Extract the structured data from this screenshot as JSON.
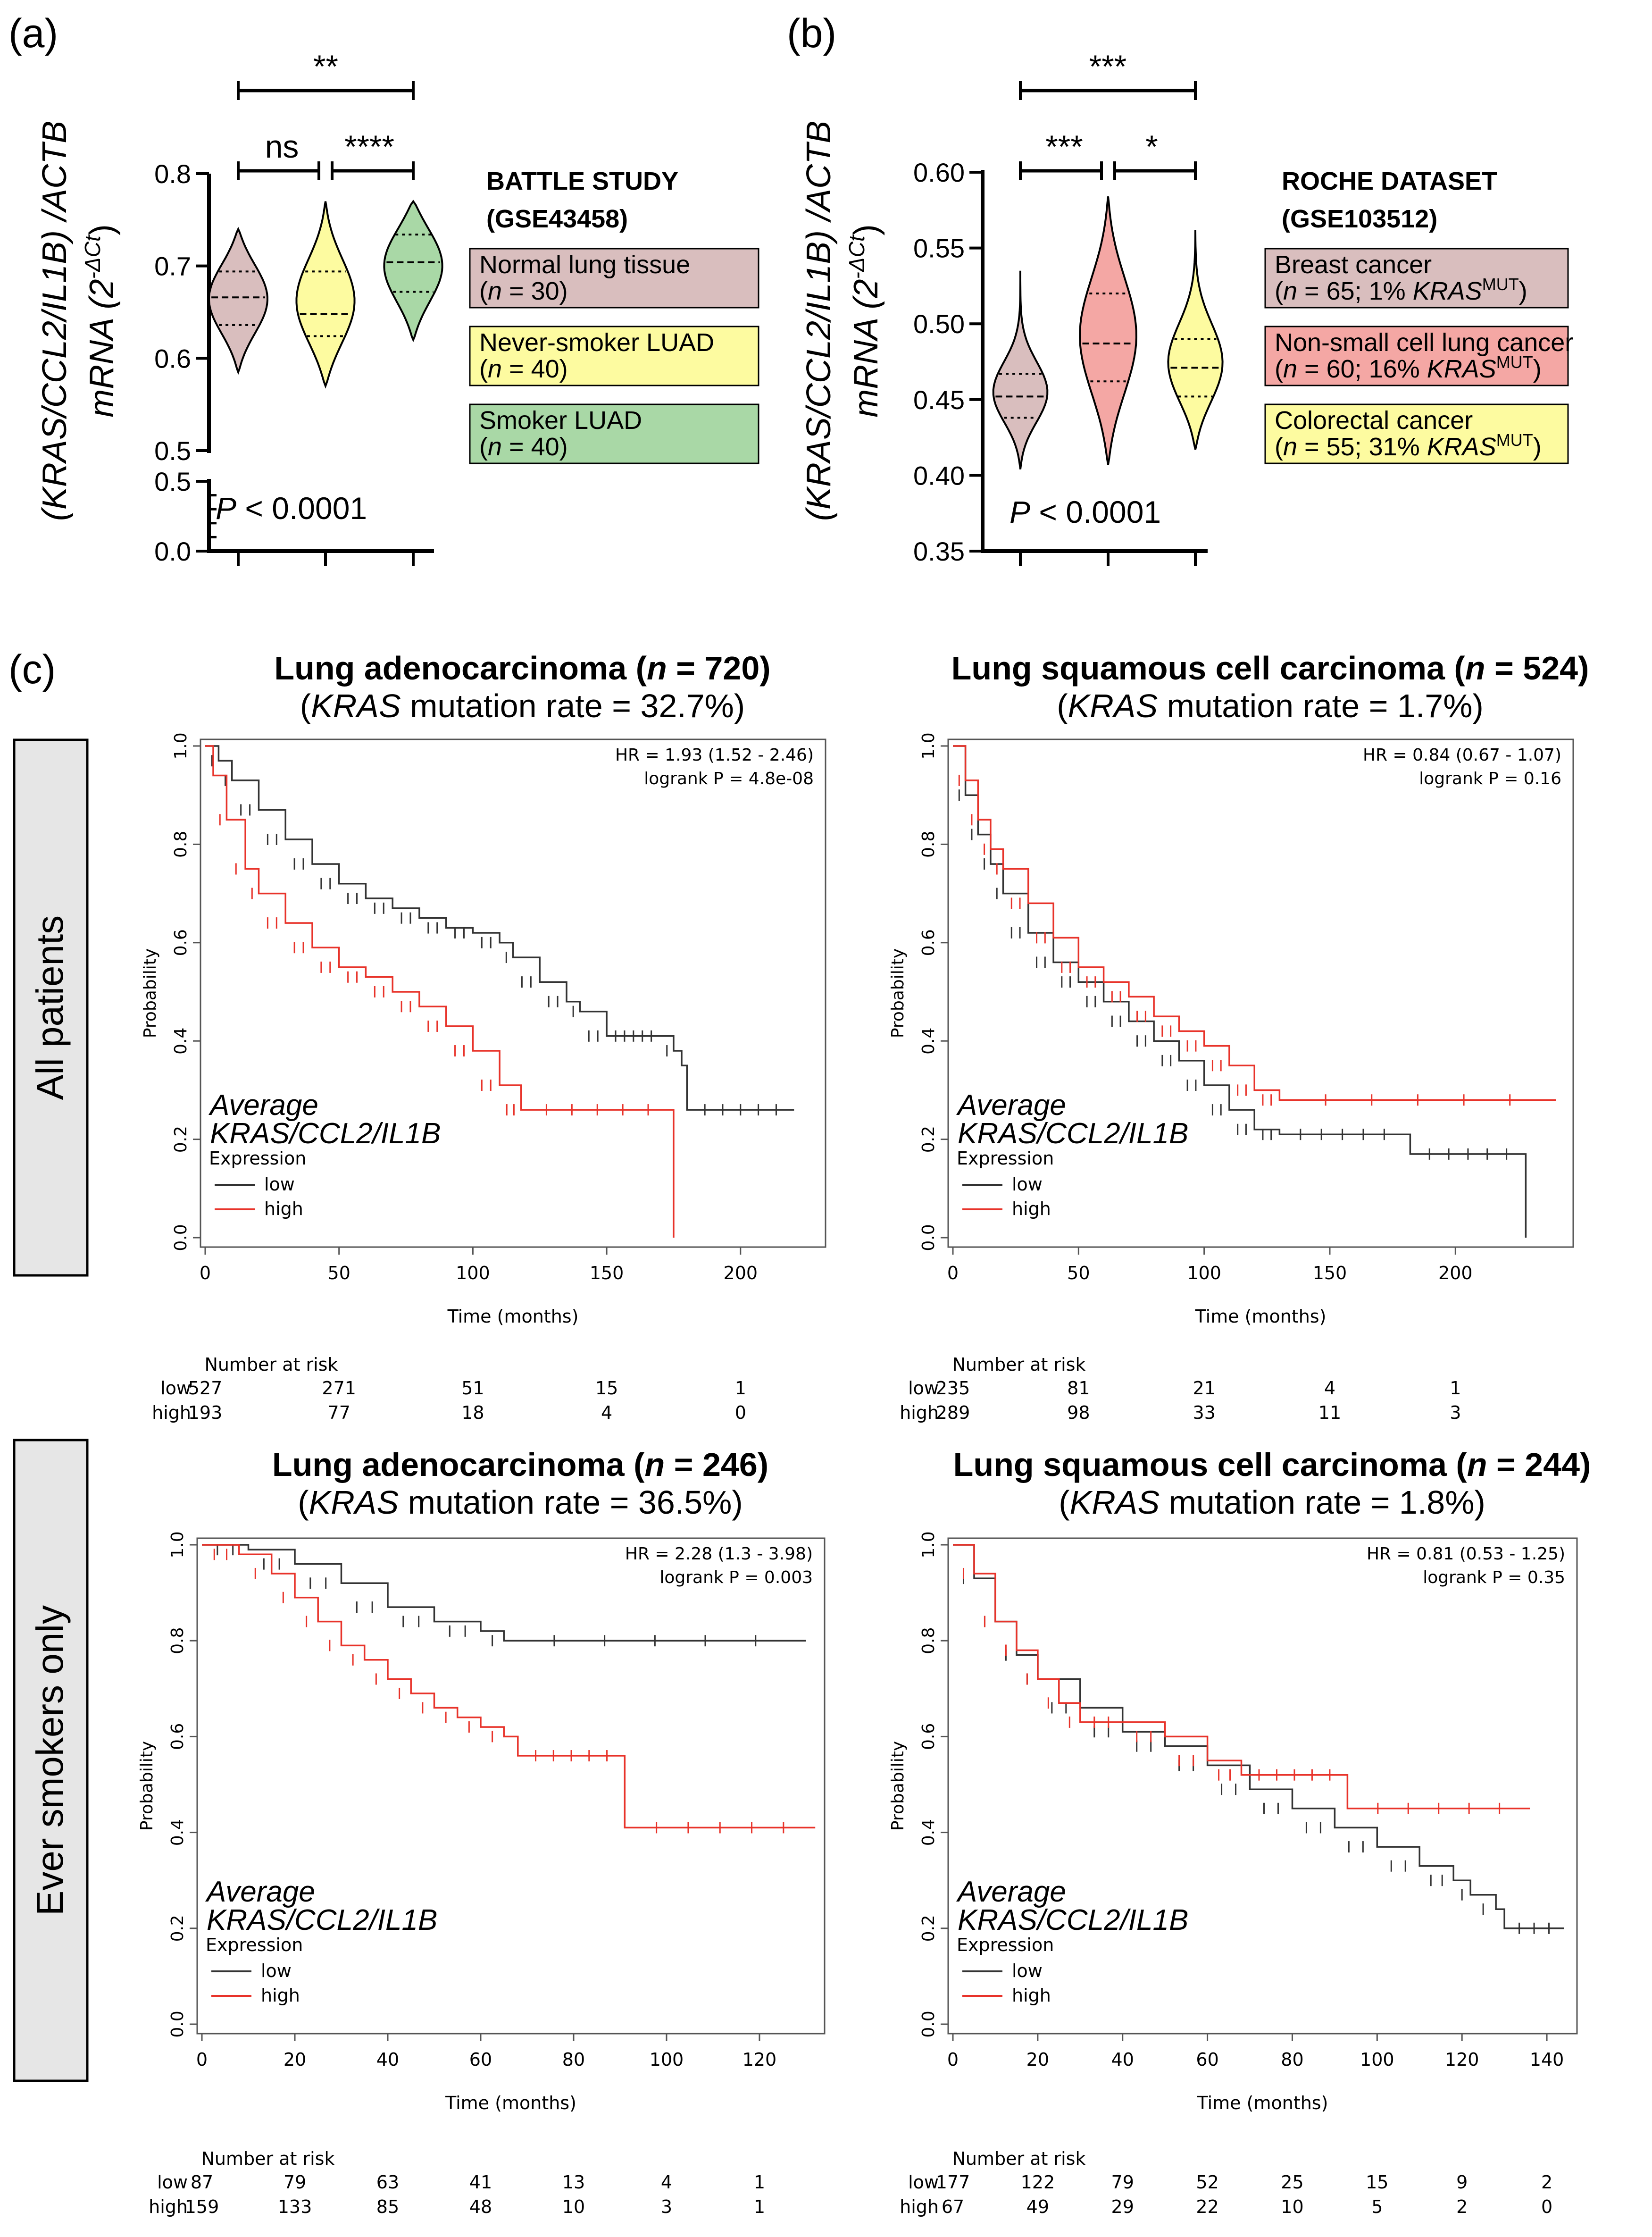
{
  "panel_labels": [
    "(a)",
    "(b)",
    "(c)"
  ],
  "row_labels": [
    "All patients",
    "Ever smokers only"
  ],
  "chart_data": [
    {
      "id": "a",
      "type": "violin",
      "ylabel_line1": "(KRAS/CCL2/IL1B) /ACTB",
      "ylabel_line2": "mRNA (2",
      "ylabel_sup": "-ΔCt",
      "ylabel_close": ")",
      "ylim_upper": [
        0.5,
        0.8
      ],
      "ylim_lower": [
        0.0,
        0.5
      ],
      "yticks_upper": [
        "0.5",
        "0.6",
        "0.7",
        "0.8"
      ],
      "yticks_lower": [
        "0.0",
        "0.5"
      ],
      "pvalue_label": "P",
      "pvalue_text": "< 0.0001",
      "significance": [
        {
          "groups": [
            1,
            3
          ],
          "label": "**"
        },
        {
          "groups": [
            1,
            2
          ],
          "label": "ns"
        },
        {
          "groups": [
            2,
            3
          ],
          "label": "****"
        }
      ],
      "legend_title": "BATTLE STUDY",
      "legend_subtitle": "(GSE43458)",
      "groups": [
        {
          "name": "Normal lung tissue",
          "n_text": "(n = 30)",
          "color": "#D9BEBE",
          "min": 0.585,
          "max": 0.74,
          "q1": 0.636,
          "median": 0.666,
          "q3": 0.694
        },
        {
          "name": "Never-smoker LUAD",
          "n_text": "(n = 40)",
          "color": "#FDFBA0",
          "min": 0.57,
          "max": 0.77,
          "q1": 0.624,
          "median": 0.648,
          "q3": 0.694
        },
        {
          "name": "Smoker LUAD",
          "n_text": "(n = 40)",
          "color": "#A9D8A6",
          "min": 0.62,
          "max": 0.77,
          "q1": 0.672,
          "median": 0.704,
          "q3": 0.734
        }
      ]
    },
    {
      "id": "b",
      "type": "violin",
      "ylabel_line1": "(KRAS/CCL2/IL1B) /ACTB",
      "ylabel_line2": "mRNA (2",
      "ylabel_sup": "-ΔCt",
      "ylabel_close": ")",
      "ylim": [
        0.35,
        0.6
      ],
      "yticks": [
        "0.35",
        "0.40",
        "0.45",
        "0.50",
        "0.55",
        "0.60"
      ],
      "pvalue_label": "P",
      "pvalue_text": "< 0.0001",
      "significance": [
        {
          "groups": [
            1,
            3
          ],
          "label": "***"
        },
        {
          "groups": [
            1,
            2
          ],
          "label": "***"
        },
        {
          "groups": [
            2,
            3
          ],
          "label": "*"
        }
      ],
      "legend_title": "ROCHE DATASET",
      "legend_subtitle": "(GSE103512)",
      "groups": [
        {
          "name": "Breast cancer",
          "n_text": "(n = 65; 1% KRAS",
          "sup": "MUT",
          "close": ")",
          "color": "#D9BEBE",
          "min": 0.404,
          "max": 0.535,
          "q1": 0.438,
          "median": 0.452,
          "q3": 0.467
        },
        {
          "name": "Non-small cell lung cancer",
          "n_text": "(n = 60; 16% KRAS",
          "sup": "MUT",
          "close": ")",
          "color": "#F4A7A4",
          "min": 0.407,
          "max": 0.584,
          "q1": 0.462,
          "median": 0.487,
          "q3": 0.52
        },
        {
          "name": "Colorectal cancer",
          "n_text": "(n = 55; 31% KRAS",
          "sup": "MUT",
          "close": ")",
          "color": "#FDFBA0",
          "min": 0.417,
          "max": 0.562,
          "q1": 0.452,
          "median": 0.471,
          "q3": 0.49
        }
      ]
    },
    {
      "id": "c1",
      "type": "kaplan-meier",
      "title_main": "Lung adenocarcinoma (n = 720)",
      "title_sub": "(KRAS mutation rate = 32.7%)",
      "hr_text": "HR = 1.93 (1.52 - 2.46)",
      "logrank_text": "logrank P = 4.8e-08",
      "xlabel": "Time (months)",
      "ylabel": "Probability",
      "xlim": [
        0,
        230
      ],
      "xticks": [
        0,
        50,
        100,
        150,
        200
      ],
      "ylim": [
        0,
        1
      ],
      "yticks": [
        "0.0",
        "0.2",
        "0.4",
        "0.6",
        "0.8",
        "1.0"
      ],
      "annotation_line1": "Average",
      "annotation_line2": "KRAS/CCL2/IL1B",
      "legend_title": "Expression",
      "risk_title": "Number at risk",
      "series": [
        {
          "name": "low",
          "color": "#333333",
          "risk": [
            "527",
            "271",
            "51",
            "15",
            "1"
          ],
          "points": [
            [
              0,
              1.0
            ],
            [
              5,
              0.97
            ],
            [
              10,
              0.93
            ],
            [
              20,
              0.87
            ],
            [
              30,
              0.81
            ],
            [
              40,
              0.76
            ],
            [
              50,
              0.72
            ],
            [
              60,
              0.69
            ],
            [
              70,
              0.67
            ],
            [
              80,
              0.65
            ],
            [
              90,
              0.63
            ],
            [
              100,
              0.62
            ],
            [
              110,
              0.6
            ],
            [
              115,
              0.57
            ],
            [
              125,
              0.52
            ],
            [
              135,
              0.48
            ],
            [
              140,
              0.46
            ],
            [
              150,
              0.41
            ],
            [
              170,
              0.41
            ],
            [
              175,
              0.38
            ],
            [
              178,
              0.35
            ],
            [
              180,
              0.26
            ],
            [
              220,
              0.26
            ]
          ]
        },
        {
          "name": "high",
          "color": "#E8332A",
          "risk": [
            "193",
            "77",
            "18",
            "4",
            "0"
          ],
          "points": [
            [
              0,
              1.0
            ],
            [
              3,
              0.94
            ],
            [
              8,
              0.85
            ],
            [
              15,
              0.75
            ],
            [
              20,
              0.7
            ],
            [
              30,
              0.64
            ],
            [
              40,
              0.59
            ],
            [
              50,
              0.55
            ],
            [
              60,
              0.53
            ],
            [
              70,
              0.5
            ],
            [
              80,
              0.47
            ],
            [
              90,
              0.43
            ],
            [
              100,
              0.38
            ],
            [
              110,
              0.31
            ],
            [
              118,
              0.26
            ],
            [
              175,
              0.26
            ],
            [
              175,
              0.0
            ]
          ]
        }
      ]
    },
    {
      "id": "c2",
      "type": "kaplan-meier",
      "title_main": "Lung squamous cell carcinoma (n = 524)",
      "title_sub": "(KRAS mutation rate = 1.7%)",
      "hr_text": "HR = 0.84 (0.67 - 1.07)",
      "logrank_text": "logrank P = 0.16",
      "xlabel": "Time (months)",
      "ylabel": "Probability",
      "xlim": [
        0,
        245
      ],
      "xticks": [
        0,
        50,
        100,
        150,
        200
      ],
      "ylim": [
        0,
        1
      ],
      "yticks": [
        "0.0",
        "0.2",
        "0.4",
        "0.6",
        "0.8",
        "1.0"
      ],
      "annotation_line1": "Average",
      "annotation_line2": "KRAS/CCL2/IL1B",
      "legend_title": "Expression",
      "risk_title": "Number at risk",
      "series": [
        {
          "name": "low",
          "color": "#333333",
          "risk": [
            "235",
            "81",
            "21",
            "4",
            "1"
          ],
          "points": [
            [
              0,
              1.0
            ],
            [
              5,
              0.9
            ],
            [
              10,
              0.82
            ],
            [
              15,
              0.76
            ],
            [
              20,
              0.7
            ],
            [
              30,
              0.62
            ],
            [
              40,
              0.56
            ],
            [
              50,
              0.52
            ],
            [
              60,
              0.48
            ],
            [
              70,
              0.44
            ],
            [
              80,
              0.4
            ],
            [
              90,
              0.36
            ],
            [
              100,
              0.31
            ],
            [
              110,
              0.26
            ],
            [
              120,
              0.22
            ],
            [
              130,
              0.21
            ],
            [
              180,
              0.21
            ],
            [
              182,
              0.17
            ],
            [
              228,
              0.17
            ],
            [
              228,
              0.0
            ]
          ]
        },
        {
          "name": "high",
          "color": "#E8332A",
          "risk": [
            "289",
            "98",
            "33",
            "11",
            "3"
          ],
          "points": [
            [
              0,
              1.0
            ],
            [
              5,
              0.93
            ],
            [
              10,
              0.85
            ],
            [
              15,
              0.79
            ],
            [
              20,
              0.75
            ],
            [
              30,
              0.68
            ],
            [
              40,
              0.61
            ],
            [
              50,
              0.55
            ],
            [
              60,
              0.52
            ],
            [
              70,
              0.49
            ],
            [
              80,
              0.45
            ],
            [
              90,
              0.42
            ],
            [
              100,
              0.39
            ],
            [
              110,
              0.35
            ],
            [
              120,
              0.3
            ],
            [
              130,
              0.28
            ],
            [
              240,
              0.28
            ]
          ]
        }
      ]
    },
    {
      "id": "c3",
      "type": "kaplan-meier",
      "title_main": "Lung adenocarcinoma (n = 246)",
      "title_sub": "(KRAS mutation rate = 36.5%)",
      "hr_text": "HR = 2.28 (1.3 - 3.98)",
      "logrank_text": "logrank P = 0.003",
      "xlabel": "Time (months)",
      "ylabel": "Probability",
      "xlim": [
        0,
        133
      ],
      "xticks": [
        0,
        20,
        40,
        60,
        80,
        100,
        120
      ],
      "ylim": [
        0,
        1
      ],
      "yticks": [
        "0.0",
        "0.2",
        "0.4",
        "0.6",
        "0.8",
        "1.0"
      ],
      "annotation_line1": "Average",
      "annotation_line2": "KRAS/CCL2/IL1B",
      "legend_title": "Expression",
      "risk_title": "Number at risk",
      "series": [
        {
          "name": "low",
          "color": "#333333",
          "risk": [
            "87",
            "79",
            "63",
            "41",
            "13",
            "4",
            "1"
          ],
          "points": [
            [
              0,
              1.0
            ],
            [
              10,
              0.99
            ],
            [
              20,
              0.96
            ],
            [
              30,
              0.92
            ],
            [
              40,
              0.87
            ],
            [
              50,
              0.84
            ],
            [
              60,
              0.82
            ],
            [
              65,
              0.8
            ],
            [
              130,
              0.8
            ]
          ]
        },
        {
          "name": "high",
          "color": "#E8332A",
          "risk": [
            "159",
            "133",
            "85",
            "48",
            "10",
            "3",
            "1"
          ],
          "points": [
            [
              0,
              1.0
            ],
            [
              8,
              0.98
            ],
            [
              15,
              0.94
            ],
            [
              20,
              0.89
            ],
            [
              25,
              0.84
            ],
            [
              30,
              0.79
            ],
            [
              35,
              0.76
            ],
            [
              40,
              0.72
            ],
            [
              45,
              0.69
            ],
            [
              50,
              0.66
            ],
            [
              55,
              0.64
            ],
            [
              60,
              0.62
            ],
            [
              65,
              0.6
            ],
            [
              68,
              0.56
            ],
            [
              91,
              0.56
            ],
            [
              91,
              0.41
            ],
            [
              132,
              0.41
            ]
          ]
        }
      ]
    },
    {
      "id": "c4",
      "type": "kaplan-meier",
      "title_main": "Lung squamous cell carcinoma (n = 244)",
      "title_sub": "(KRAS mutation rate = 1.8%)",
      "hr_text": "HR = 0.81 (0.53 - 1.25)",
      "logrank_text": "logrank P = 0.35",
      "xlabel": "Time (months)",
      "ylabel": "Probability",
      "xlim": [
        0,
        146
      ],
      "xticks": [
        0,
        20,
        40,
        60,
        80,
        100,
        120,
        140
      ],
      "ylim": [
        0,
        1
      ],
      "yticks": [
        "0.0",
        "0.2",
        "0.4",
        "0.6",
        "0.8",
        "1.0"
      ],
      "annotation_line1": "Average",
      "annotation_line2": "KRAS/CCL2/IL1B",
      "legend_title": "Expression",
      "risk_title": "Number at risk",
      "series": [
        {
          "name": "low",
          "color": "#333333",
          "risk": [
            "177",
            "122",
            "79",
            "52",
            "25",
            "15",
            "9",
            "2"
          ],
          "points": [
            [
              0,
              1.0
            ],
            [
              5,
              0.93
            ],
            [
              10,
              0.84
            ],
            [
              15,
              0.77
            ],
            [
              20,
              0.72
            ],
            [
              30,
              0.66
            ],
            [
              40,
              0.61
            ],
            [
              50,
              0.58
            ],
            [
              60,
              0.54
            ],
            [
              70,
              0.49
            ],
            [
              80,
              0.45
            ],
            [
              90,
              0.41
            ],
            [
              100,
              0.37
            ],
            [
              110,
              0.33
            ],
            [
              118,
              0.3
            ],
            [
              122,
              0.27
            ],
            [
              128,
              0.24
            ],
            [
              130,
              0.2
            ],
            [
              144,
              0.2
            ]
          ]
        },
        {
          "name": "high",
          "color": "#E8332A",
          "risk": [
            "67",
            "49",
            "29",
            "22",
            "10",
            "5",
            "2",
            "0"
          ],
          "points": [
            [
              0,
              1.0
            ],
            [
              5,
              0.94
            ],
            [
              10,
              0.84
            ],
            [
              15,
              0.78
            ],
            [
              20,
              0.72
            ],
            [
              25,
              0.67
            ],
            [
              30,
              0.63
            ],
            [
              40,
              0.63
            ],
            [
              50,
              0.6
            ],
            [
              60,
              0.55
            ],
            [
              68,
              0.52
            ],
            [
              93,
              0.52
            ],
            [
              93,
              0.45
            ],
            [
              136,
              0.45
            ]
          ]
        }
      ]
    }
  ]
}
